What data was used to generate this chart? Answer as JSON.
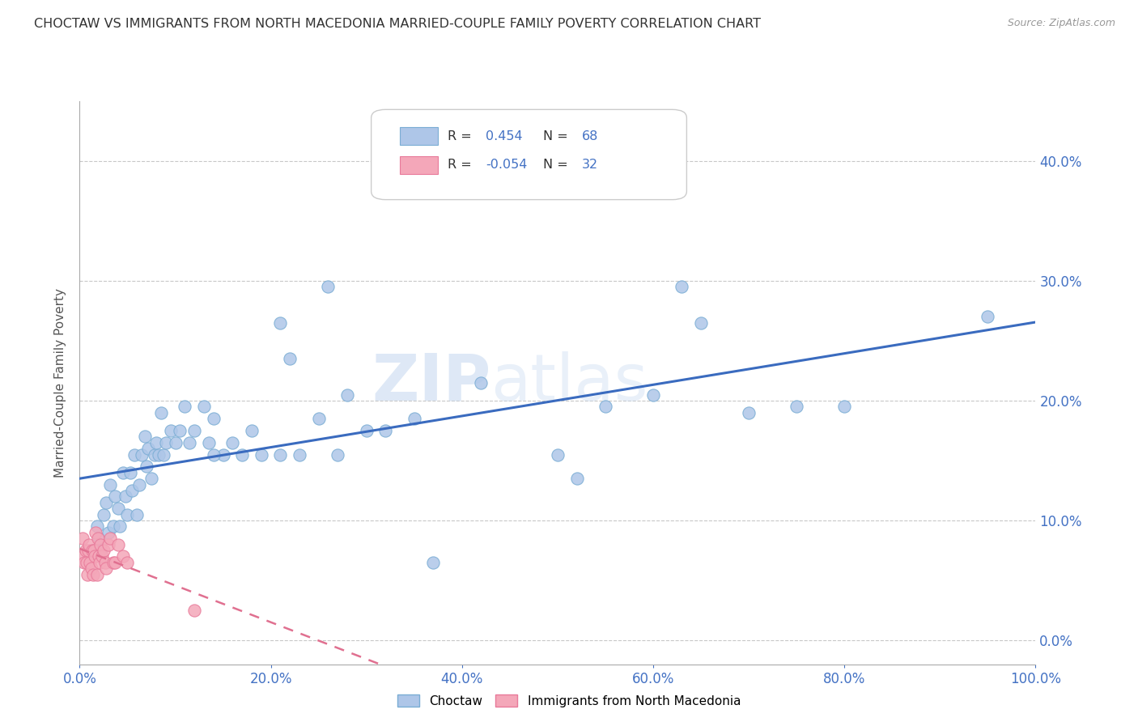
{
  "title": "CHOCTAW VS IMMIGRANTS FROM NORTH MACEDONIA MARRIED-COUPLE FAMILY POVERTY CORRELATION CHART",
  "source": "Source: ZipAtlas.com",
  "ylabel": "Married-Couple Family Poverty",
  "watermark": "ZIPatlas",
  "tick_color": "#4472c4",
  "grid_color": "#c8c8c8",
  "choctaw_color": "#aec6e8",
  "choctaw_edge": "#7aadd4",
  "macedonia_color": "#f4a7b9",
  "macedonia_edge": "#e87a9a",
  "trend_choctaw_color": "#3a6bbf",
  "trend_macedonia_color": "#e07090",
  "xlim": [
    0,
    1.0
  ],
  "ylim": [
    -0.02,
    0.45
  ],
  "yticks": [
    0.0,
    0.1,
    0.2,
    0.3,
    0.4
  ],
  "xticks": [
    0.0,
    0.2,
    0.4,
    0.6,
    0.8,
    1.0
  ],
  "choctaw_x": [
    0.018,
    0.02,
    0.022,
    0.025,
    0.028,
    0.03,
    0.032,
    0.035,
    0.037,
    0.04,
    0.042,
    0.045,
    0.048,
    0.05,
    0.053,
    0.055,
    0.057,
    0.06,
    0.062,
    0.065,
    0.068,
    0.07,
    0.072,
    0.075,
    0.078,
    0.08,
    0.083,
    0.085,
    0.088,
    0.09,
    0.095,
    0.1,
    0.105,
    0.11,
    0.115,
    0.12,
    0.13,
    0.135,
    0.14,
    0.15,
    0.16,
    0.17,
    0.18,
    0.19,
    0.21,
    0.22,
    0.25,
    0.26,
    0.28,
    0.3,
    0.32,
    0.35,
    0.37,
    0.42,
    0.5,
    0.52,
    0.55,
    0.6,
    0.63,
    0.65,
    0.7,
    0.75,
    0.8,
    0.95,
    0.14,
    0.21,
    0.27,
    0.23
  ],
  "choctaw_y": [
    0.095,
    0.085,
    0.075,
    0.105,
    0.115,
    0.09,
    0.13,
    0.095,
    0.12,
    0.11,
    0.095,
    0.14,
    0.12,
    0.105,
    0.14,
    0.125,
    0.155,
    0.105,
    0.13,
    0.155,
    0.17,
    0.145,
    0.16,
    0.135,
    0.155,
    0.165,
    0.155,
    0.19,
    0.155,
    0.165,
    0.175,
    0.165,
    0.175,
    0.195,
    0.165,
    0.175,
    0.195,
    0.165,
    0.185,
    0.155,
    0.165,
    0.155,
    0.175,
    0.155,
    0.265,
    0.235,
    0.185,
    0.295,
    0.205,
    0.175,
    0.175,
    0.185,
    0.065,
    0.215,
    0.155,
    0.135,
    0.195,
    0.205,
    0.295,
    0.265,
    0.19,
    0.195,
    0.195,
    0.27,
    0.155,
    0.155,
    0.155,
    0.155
  ],
  "macedonia_x": [
    0.003,
    0.004,
    0.005,
    0.006,
    0.007,
    0.008,
    0.009,
    0.01,
    0.011,
    0.012,
    0.013,
    0.014,
    0.015,
    0.016,
    0.017,
    0.018,
    0.019,
    0.02,
    0.021,
    0.022,
    0.023,
    0.025,
    0.027,
    0.028,
    0.03,
    0.032,
    0.035,
    0.037,
    0.04,
    0.045,
    0.05,
    0.12
  ],
  "macedonia_y": [
    0.085,
    0.07,
    0.065,
    0.075,
    0.065,
    0.055,
    0.075,
    0.08,
    0.065,
    0.06,
    0.075,
    0.055,
    0.075,
    0.07,
    0.09,
    0.055,
    0.085,
    0.07,
    0.065,
    0.08,
    0.07,
    0.075,
    0.065,
    0.06,
    0.08,
    0.085,
    0.065,
    0.065,
    0.08,
    0.07,
    0.065,
    0.025
  ]
}
